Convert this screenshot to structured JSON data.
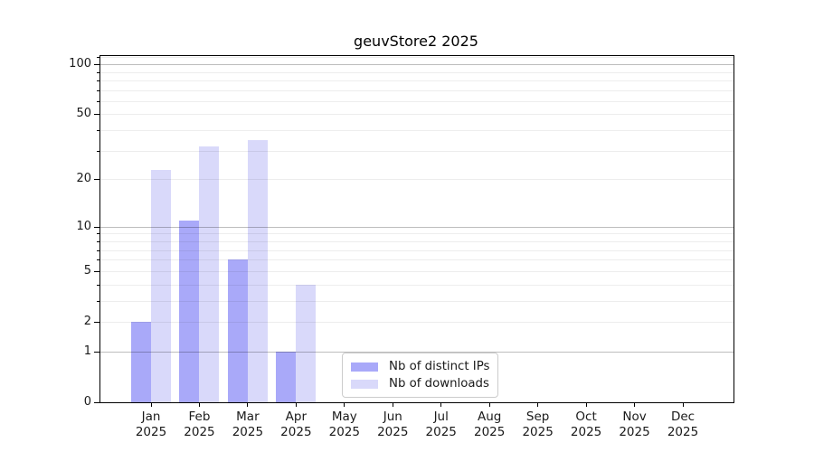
{
  "title": "geuvStore2 2025",
  "chart_data": {
    "type": "bar",
    "title": "geuvStore2 2025",
    "categories": [
      "Jan",
      "Feb",
      "Mar",
      "Apr",
      "May",
      "Jun",
      "Jul",
      "Aug",
      "Sep",
      "Oct",
      "Nov",
      "Dec"
    ],
    "category_year": "2025",
    "series": [
      {
        "name": "Nb of distinct IPs",
        "key": "distinct-ips",
        "color": "#a9a9f9",
        "values": [
          2,
          11,
          6,
          1,
          0,
          0,
          0,
          0,
          0,
          0,
          0,
          0
        ]
      },
      {
        "name": "Nb of downloads",
        "key": "downloads",
        "color": "#d9d9fa",
        "values": [
          23,
          32,
          35,
          4,
          0,
          0,
          0,
          0,
          0,
          0,
          0,
          0
        ]
      }
    ],
    "yscale": "log1p",
    "ylim": [
      0,
      112
    ],
    "yticks": [
      0,
      1,
      2,
      5,
      10,
      20,
      50,
      100
    ],
    "major_gridlines": [
      1,
      10,
      100
    ],
    "minor_gridlines": [
      2,
      3,
      4,
      5,
      6,
      7,
      8,
      9,
      20,
      30,
      40,
      50,
      60,
      70,
      80,
      90,
      110
    ],
    "legend_position": "lower center",
    "colors": {
      "grid_major": "rgba(0,0,0,0.26)",
      "grid_minor": "rgba(0,0,0,0.07)",
      "axis": "#000000",
      "text": "#1a1a1a"
    }
  }
}
